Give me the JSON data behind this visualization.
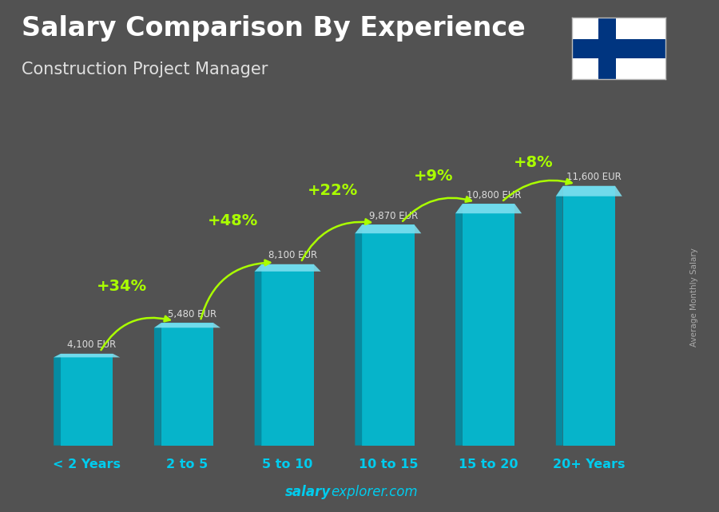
{
  "title": "Salary Comparison By Experience",
  "subtitle": "Construction Project Manager",
  "categories": [
    "< 2 Years",
    "2 to 5",
    "5 to 10",
    "10 to 15",
    "15 to 20",
    "20+ Years"
  ],
  "values": [
    4100,
    5480,
    8100,
    9870,
    10800,
    11600
  ],
  "labels": [
    "4,100 EUR",
    "5,480 EUR",
    "8,100 EUR",
    "9,870 EUR",
    "10,800 EUR",
    "11,600 EUR"
  ],
  "pct_labels": [
    "+34%",
    "+48%",
    "+22%",
    "+9%",
    "+8%"
  ],
  "bar_color": "#00bcd4",
  "bar_left_color": "#0090a8",
  "bar_top_color": "#80e0f0",
  "bg_color": "#7a7a7a",
  "title_color": "#ffffff",
  "subtitle_color": "#e0e0e0",
  "label_color": "#dddddd",
  "pct_color": "#aaff00",
  "category_color": "#00ccee",
  "watermark_color": "#00ccee",
  "side_label_color": "#aaaaaa",
  "side_label": "Average Monthly Salary",
  "watermark_bold": "salary",
  "watermark_rest": "explorer.com",
  "ylim": [
    0,
    13500
  ],
  "flag_cross_color": "#003580",
  "flag_bg": "#ffffff"
}
